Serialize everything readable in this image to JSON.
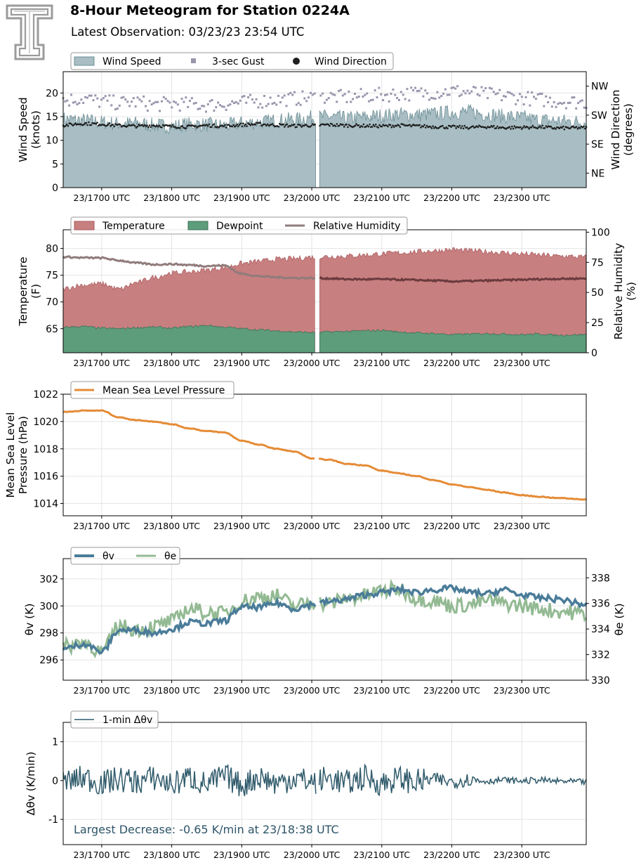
{
  "header": {
    "title": "8-Hour Meteogram for Station 0224A",
    "subtitle": "Latest Observation: 03/23/23 23:54 UTC"
  },
  "colors": {
    "wind_fill": "#a8bec4",
    "wind_edge": "#6d8f96",
    "gust": "#9a95ad",
    "direction": "#1f1f1f",
    "temperature": "#c87f80",
    "temperature_edge": "#a85a5c",
    "dewpoint": "#5e9d7c",
    "dewpoint_edge": "#3d7155",
    "rh": "#917b7b",
    "rh_dark": "#6b3b3d",
    "pressure": "#e58b36",
    "theta_v": "#4a7c99",
    "theta_e": "#93ba93",
    "dtheta": "#2f5a6b",
    "annotation": "#2d5468",
    "grid": "#e4e4e4",
    "logo": "#9b9b9b"
  },
  "time_axis": {
    "start_hour": 16.45,
    "end_hour": 23.92,
    "ticks": [
      {
        "hour": 17,
        "label": "23/1700 UTC"
      },
      {
        "hour": 18,
        "label": "23/1800 UTC"
      },
      {
        "hour": 19,
        "label": "23/1900 UTC"
      },
      {
        "hour": 20,
        "label": "23/2000 UTC"
      },
      {
        "hour": 21,
        "label": "23/2100 UTC"
      },
      {
        "hour": 22,
        "label": "23/2200 UTC"
      },
      {
        "hour": 23,
        "label": "23/2300 UTC"
      }
    ],
    "data_gap_hour": 20.08
  },
  "chart_data": [
    {
      "id": "wind",
      "type": "area",
      "ylabel": "Wind Speed\n(knots)",
      "ylim": [
        0,
        24.5
      ],
      "yticks": [
        0,
        5,
        10,
        15,
        20
      ],
      "y2label": "Wind Direction\n(degrees)",
      "y2lim": [
        0,
        360
      ],
      "y2ticks": [
        {
          "value": 45,
          "label": "NE"
        },
        {
          "value": 135,
          "label": "SE"
        },
        {
          "value": 225,
          "label": "SW"
        },
        {
          "value": 315,
          "label": "NW"
        }
      ],
      "legend": [
        "Wind Speed",
        "3-sec Gust",
        "Wind Direction"
      ],
      "legend_position": "top-left",
      "grid": true,
      "series": [
        {
          "name": "Wind Speed",
          "kind": "area",
          "x": [
            16.45,
            16.75,
            17.0,
            17.25,
            17.5,
            17.75,
            18.0,
            18.25,
            18.5,
            18.75,
            19.0,
            19.25,
            19.5,
            19.75,
            20.0,
            20.25,
            20.5,
            20.75,
            21.0,
            21.25,
            21.5,
            21.75,
            22.0,
            22.25,
            22.5,
            22.75,
            23.0,
            23.25,
            23.5,
            23.92
          ],
          "y": [
            14.5,
            14.2,
            13.8,
            13.5,
            13.6,
            13.2,
            13.0,
            13.4,
            13.3,
            13.1,
            13.6,
            13.8,
            14.2,
            14.4,
            14.8,
            15.0,
            14.6,
            14.9,
            15.2,
            15.5,
            15.4,
            15.6,
            15.9,
            16.0,
            15.5,
            15.1,
            14.8,
            14.3,
            14.1,
            13.8
          ]
        },
        {
          "name": "3-sec Gust",
          "kind": "scatter",
          "x": [
            16.45,
            16.75,
            17.0,
            17.25,
            17.5,
            17.75,
            18.0,
            18.25,
            18.5,
            18.75,
            19.0,
            19.25,
            19.5,
            19.75,
            20.0,
            20.25,
            20.5,
            20.75,
            21.0,
            21.25,
            21.5,
            21.75,
            22.0,
            22.25,
            22.5,
            22.75,
            23.0,
            23.25,
            23.5,
            23.92
          ],
          "y": [
            18.5,
            18.8,
            18.2,
            17.9,
            18.1,
            17.5,
            17.8,
            17.6,
            17.4,
            17.7,
            18.0,
            18.3,
            18.6,
            18.8,
            19.0,
            19.2,
            19.1,
            19.4,
            19.6,
            19.8,
            19.9,
            20.1,
            20.4,
            20.2,
            19.7,
            19.4,
            19.0,
            18.6,
            18.3,
            18.0
          ]
        },
        {
          "name": "Wind Direction",
          "kind": "points",
          "axis": "y2",
          "x": [
            16.45,
            16.75,
            17.0,
            17.25,
            17.5,
            17.75,
            18.0,
            18.25,
            18.5,
            18.75,
            19.0,
            19.25,
            19.5,
            19.75,
            20.0,
            20.25,
            20.5,
            20.75,
            21.0,
            21.25,
            21.5,
            21.75,
            22.0,
            22.25,
            22.5,
            22.75,
            23.0,
            23.25,
            23.5,
            23.92
          ],
          "y": [
            194,
            199,
            197,
            193,
            191,
            193,
            190,
            189,
            193,
            191,
            195,
            197,
            194,
            192,
            193,
            195,
            193,
            192,
            191,
            193,
            191,
            189,
            188,
            187,
            189,
            186,
            187,
            188,
            185,
            186
          ]
        }
      ]
    },
    {
      "id": "temperature",
      "type": "area",
      "ylabel": "Temperature\n(F)",
      "ylim": [
        60.5,
        83.5
      ],
      "yticks": [
        65,
        70,
        75,
        80
      ],
      "y2label": "Relative Humidity\n(%)",
      "y2lim": [
        0,
        102
      ],
      "y2ticks": [
        0,
        25,
        50,
        75,
        100
      ],
      "legend": [
        "Temperature",
        "Dewpoint",
        "Relative Humidity"
      ],
      "legend_position": "top-left",
      "grid": true,
      "series": [
        {
          "name": "Temperature",
          "kind": "area",
          "x": [
            16.45,
            16.75,
            17.0,
            17.25,
            17.5,
            17.75,
            18.0,
            18.25,
            18.5,
            18.75,
            19.0,
            19.25,
            19.5,
            19.75,
            20.0,
            20.25,
            20.5,
            20.75,
            21.0,
            21.25,
            21.5,
            21.75,
            22.0,
            22.25,
            22.5,
            22.75,
            23.0,
            23.25,
            23.5,
            23.92
          ],
          "y": [
            72.5,
            73.2,
            73.4,
            72.4,
            73.6,
            74.6,
            75.4,
            75.6,
            76.0,
            76.4,
            77.2,
            77.6,
            78.0,
            78.1,
            78.4,
            78.5,
            78.6,
            78.8,
            79.0,
            79.2,
            79.4,
            79.6,
            79.8,
            79.6,
            79.4,
            79.2,
            79.0,
            78.8,
            78.6,
            78.4
          ]
        },
        {
          "name": "Dewpoint",
          "kind": "area",
          "x": [
            16.45,
            16.75,
            17.0,
            17.25,
            17.5,
            17.75,
            18.0,
            18.25,
            18.5,
            18.75,
            19.0,
            19.25,
            19.5,
            19.75,
            20.0,
            20.25,
            20.5,
            20.75,
            21.0,
            21.25,
            21.5,
            21.75,
            22.0,
            22.25,
            22.5,
            22.75,
            23.0,
            23.25,
            23.5,
            23.92
          ],
          "y": [
            65.3,
            65.4,
            65.1,
            65.0,
            65.2,
            65.3,
            65.1,
            65.4,
            65.6,
            65.3,
            65.0,
            64.8,
            64.6,
            64.4,
            64.3,
            64.4,
            64.5,
            64.6,
            64.7,
            64.4,
            64.2,
            64.1,
            63.9,
            64.0,
            64.1,
            64.0,
            63.9,
            64.0,
            63.8,
            63.9
          ]
        },
        {
          "name": "Relative Humidity",
          "kind": "line",
          "axis": "y2",
          "x": [
            16.45,
            16.75,
            17.0,
            17.25,
            17.5,
            17.75,
            18.0,
            18.25,
            18.5,
            18.75,
            19.0,
            19.25,
            19.5,
            19.75,
            20.0,
            20.25,
            20.5,
            20.75,
            21.0,
            21.25,
            21.5,
            21.75,
            22.0,
            22.25,
            22.5,
            22.75,
            23.0,
            23.25,
            23.5,
            23.92
          ],
          "y": [
            79.5,
            78.8,
            78.6,
            76.5,
            74.5,
            73.2,
            73.5,
            72.8,
            72.0,
            72.4,
            65.5,
            63.5,
            62.6,
            62.0,
            62.0,
            61.6,
            61.0,
            60.9,
            61.0,
            60.6,
            60.3,
            59.8,
            59.2,
            59.4,
            59.8,
            60.2,
            60.6,
            61.0,
            61.3,
            61.6
          ]
        }
      ]
    },
    {
      "id": "pressure",
      "type": "line",
      "ylabel": "Mean Sea Level\nPressure (hPa)",
      "ylim": [
        1013.1,
        1022.0
      ],
      "yticks": [
        1014,
        1016,
        1018,
        1020,
        1022
      ],
      "legend": [
        "Mean Sea Level Pressure"
      ],
      "legend_position": "top-left",
      "grid": true,
      "series": [
        {
          "name": "Mean Sea Level Pressure",
          "kind": "line",
          "x": [
            16.45,
            16.75,
            17.0,
            17.25,
            17.5,
            17.75,
            18.0,
            18.25,
            18.5,
            18.75,
            19.0,
            19.25,
            19.5,
            19.75,
            20.0,
            20.25,
            20.5,
            20.75,
            21.0,
            21.25,
            21.5,
            21.75,
            22.0,
            22.25,
            22.5,
            22.75,
            23.0,
            23.25,
            23.5,
            23.92
          ],
          "y": [
            1020.7,
            1020.8,
            1020.8,
            1020.3,
            1020.1,
            1020.0,
            1019.8,
            1019.5,
            1019.3,
            1019.2,
            1018.6,
            1018.3,
            1018.0,
            1017.8,
            1017.3,
            1017.2,
            1016.9,
            1016.8,
            1016.4,
            1016.2,
            1016.0,
            1015.7,
            1015.4,
            1015.2,
            1015.0,
            1014.8,
            1014.6,
            1014.5,
            1014.4,
            1014.3
          ]
        }
      ]
    },
    {
      "id": "theta",
      "type": "line",
      "ylabel": "θv (K)",
      "ylim": [
        294.5,
        303.5
      ],
      "yticks": [
        296,
        298,
        300,
        302
      ],
      "y2label": "θe (K)",
      "y2lim": [
        330,
        339.5
      ],
      "y2ticks": [
        330,
        332,
        334,
        336,
        338
      ],
      "legend": [
        "θv",
        "θe"
      ],
      "legend_position": "top-left",
      "grid": true,
      "series": [
        {
          "name": "θv",
          "kind": "line",
          "x": [
            16.45,
            16.75,
            17.0,
            17.25,
            17.5,
            17.75,
            18.0,
            18.25,
            18.5,
            18.75,
            19.0,
            19.25,
            19.5,
            19.75,
            20.0,
            20.25,
            20.5,
            20.75,
            21.0,
            21.25,
            21.5,
            21.75,
            22.0,
            22.25,
            22.5,
            22.75,
            23.0,
            23.25,
            23.5,
            23.92
          ],
          "y": [
            296.8,
            297.2,
            296.6,
            298.2,
            298.2,
            298.0,
            298.3,
            298.8,
            298.7,
            298.9,
            299.9,
            299.9,
            300.2,
            299.8,
            300.1,
            300.3,
            300.5,
            300.8,
            301.0,
            301.2,
            301.0,
            301.2,
            301.3,
            301.0,
            300.9,
            301.2,
            300.8,
            300.6,
            300.5,
            300.1
          ]
        },
        {
          "name": "θe",
          "kind": "line",
          "axis": "y2",
          "x": [
            16.45,
            16.75,
            17.0,
            17.25,
            17.5,
            17.75,
            18.0,
            18.25,
            18.5,
            18.75,
            19.0,
            19.25,
            19.5,
            19.75,
            20.0,
            20.25,
            20.5,
            20.75,
            21.0,
            21.25,
            21.5,
            21.75,
            22.0,
            22.25,
            22.5,
            22.75,
            23.0,
            23.25,
            23.5,
            23.92
          ],
          "y": [
            332.6,
            333.0,
            332.2,
            334.2,
            334.0,
            334.2,
            334.6,
            335.6,
            335.3,
            335.2,
            336.2,
            336.5,
            336.6,
            335.8,
            336.1,
            336.0,
            336.4,
            336.6,
            337.0,
            337.1,
            336.4,
            336.2,
            335.8,
            335.9,
            336.2,
            336.0,
            335.8,
            335.6,
            335.4,
            335.2
          ]
        }
      ]
    },
    {
      "id": "dtheta",
      "type": "line",
      "ylabel": "Δθv (K/min)",
      "ylim": [
        -1.65,
        1.5
      ],
      "yticks": [
        -1,
        0,
        1
      ],
      "legend": [
        "1-min Δθv"
      ],
      "legend_position": "top-left",
      "grid": true,
      "annotation": "Largest Decrease: -0.65 K/min at 23/18:38 UTC",
      "series": [
        {
          "name": "1-min Δθv",
          "kind": "line",
          "x": [
            16.45,
            16.75,
            17.0,
            17.25,
            17.5,
            17.75,
            18.0,
            18.25,
            18.5,
            18.75,
            19.0,
            19.25,
            19.5,
            19.75,
            20.0,
            20.25,
            20.5,
            20.75,
            21.0,
            21.25,
            21.5,
            21.75,
            22.0,
            22.25,
            22.5,
            22.75,
            23.0,
            23.25,
            23.5,
            23.92
          ],
          "y": [
            -0.1,
            0.2,
            -0.2,
            0.1,
            -0.1,
            0.2,
            -0.3,
            0.25,
            -0.3,
            0.3,
            -0.35,
            0.3,
            -0.2,
            0.2,
            -0.1,
            0.2,
            -0.2,
            0.25,
            -0.2,
            0.15,
            -0.1,
            0.1,
            -0.1,
            0.08,
            -0.05,
            0.05,
            -0.04,
            0.04,
            -0.06,
            -0.12
          ]
        }
      ]
    }
  ]
}
